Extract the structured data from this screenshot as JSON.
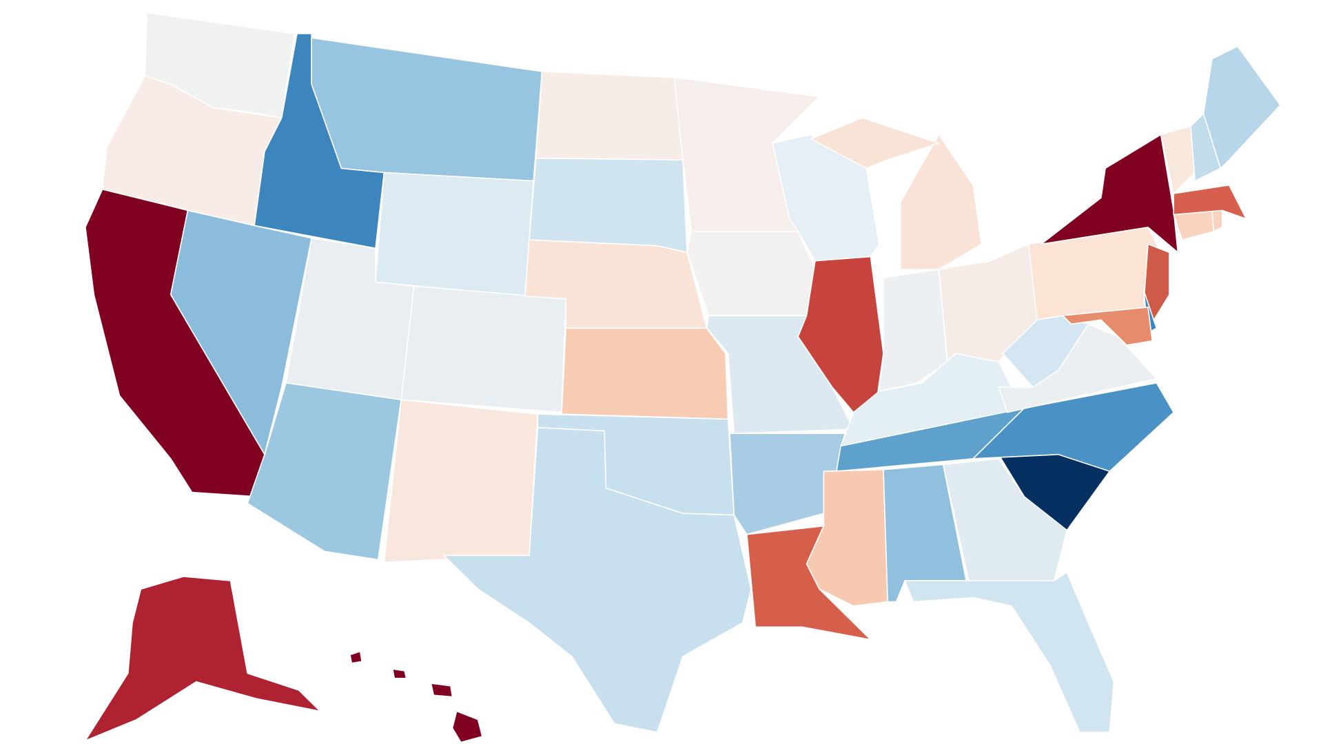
{
  "map": {
    "type": "choropleth",
    "region": "United States",
    "states": [
      {
        "id": "WA",
        "color": "#f0f1f1"
      },
      {
        "id": "OR",
        "color": "#f7ece8"
      },
      {
        "id": "CA",
        "color": "#7f0020"
      },
      {
        "id": "ID",
        "color": "#3d85bd"
      },
      {
        "id": "NV",
        "color": "#8bbcdb"
      },
      {
        "id": "MT",
        "color": "#97c4df"
      },
      {
        "id": "WY",
        "color": "#dceaf2"
      },
      {
        "id": "UT",
        "color": "#e8eef2"
      },
      {
        "id": "CO",
        "color": "#e8eef2"
      },
      {
        "id": "AZ",
        "color": "#9bc7e0"
      },
      {
        "id": "NM",
        "color": "#f9e6dd"
      },
      {
        "id": "ND",
        "color": "#f6ede8"
      },
      {
        "id": "SD",
        "color": "#d0e4ef"
      },
      {
        "id": "NE",
        "color": "#f9e3d7"
      },
      {
        "id": "KS",
        "color": "#f8cbb3"
      },
      {
        "id": "OK",
        "color": "#c8e0ee"
      },
      {
        "id": "TX",
        "color": "#c8e0ee"
      },
      {
        "id": "MN",
        "color": "#f5eeeb"
      },
      {
        "id": "IA",
        "color": "#f3f1f0"
      },
      {
        "id": "MO",
        "color": "#dce9f1"
      },
      {
        "id": "AR",
        "color": "#a7cce3"
      },
      {
        "id": "LA",
        "color": "#d65f4c"
      },
      {
        "id": "WI",
        "color": "#e6eff4"
      },
      {
        "id": "IL",
        "color": "#c7433d"
      },
      {
        "id": "MI",
        "color": "#f9e2d6"
      },
      {
        "id": "IN",
        "color": "#ecf0f2"
      },
      {
        "id": "OH",
        "color": "#f5ebe7"
      },
      {
        "id": "KY",
        "color": "#e3eef5"
      },
      {
        "id": "TN",
        "color": "#5fa1cd"
      },
      {
        "id": "MS",
        "color": "#f8c9b1"
      },
      {
        "id": "AL",
        "color": "#90c0de"
      },
      {
        "id": "GA",
        "color": "#e0ebf1"
      },
      {
        "id": "FL",
        "color": "#d1e5f0"
      },
      {
        "id": "SC",
        "color": "#053061"
      },
      {
        "id": "NC",
        "color": "#4a92c5"
      },
      {
        "id": "VA",
        "color": "#eceff1"
      },
      {
        "id": "WV",
        "color": "#d4e6f1"
      },
      {
        "id": "PA",
        "color": "#fbe3d6"
      },
      {
        "id": "NY",
        "color": "#7f0020"
      },
      {
        "id": "NJ",
        "color": "#d05a48"
      },
      {
        "id": "DE",
        "color": "#3e86c0"
      },
      {
        "id": "MD",
        "color": "#e68b6c"
      },
      {
        "id": "CT",
        "color": "#f9d3bd"
      },
      {
        "id": "RI",
        "color": "#f9d3bd"
      },
      {
        "id": "MA",
        "color": "#d6604d"
      },
      {
        "id": "VT",
        "color": "#f8e8dc"
      },
      {
        "id": "NH",
        "color": "#c2dcec"
      },
      {
        "id": "ME",
        "color": "#b7d6e9"
      },
      {
        "id": "AK",
        "color": "#ae2231"
      },
      {
        "id": "HI",
        "color": "#7f0020"
      }
    ]
  }
}
